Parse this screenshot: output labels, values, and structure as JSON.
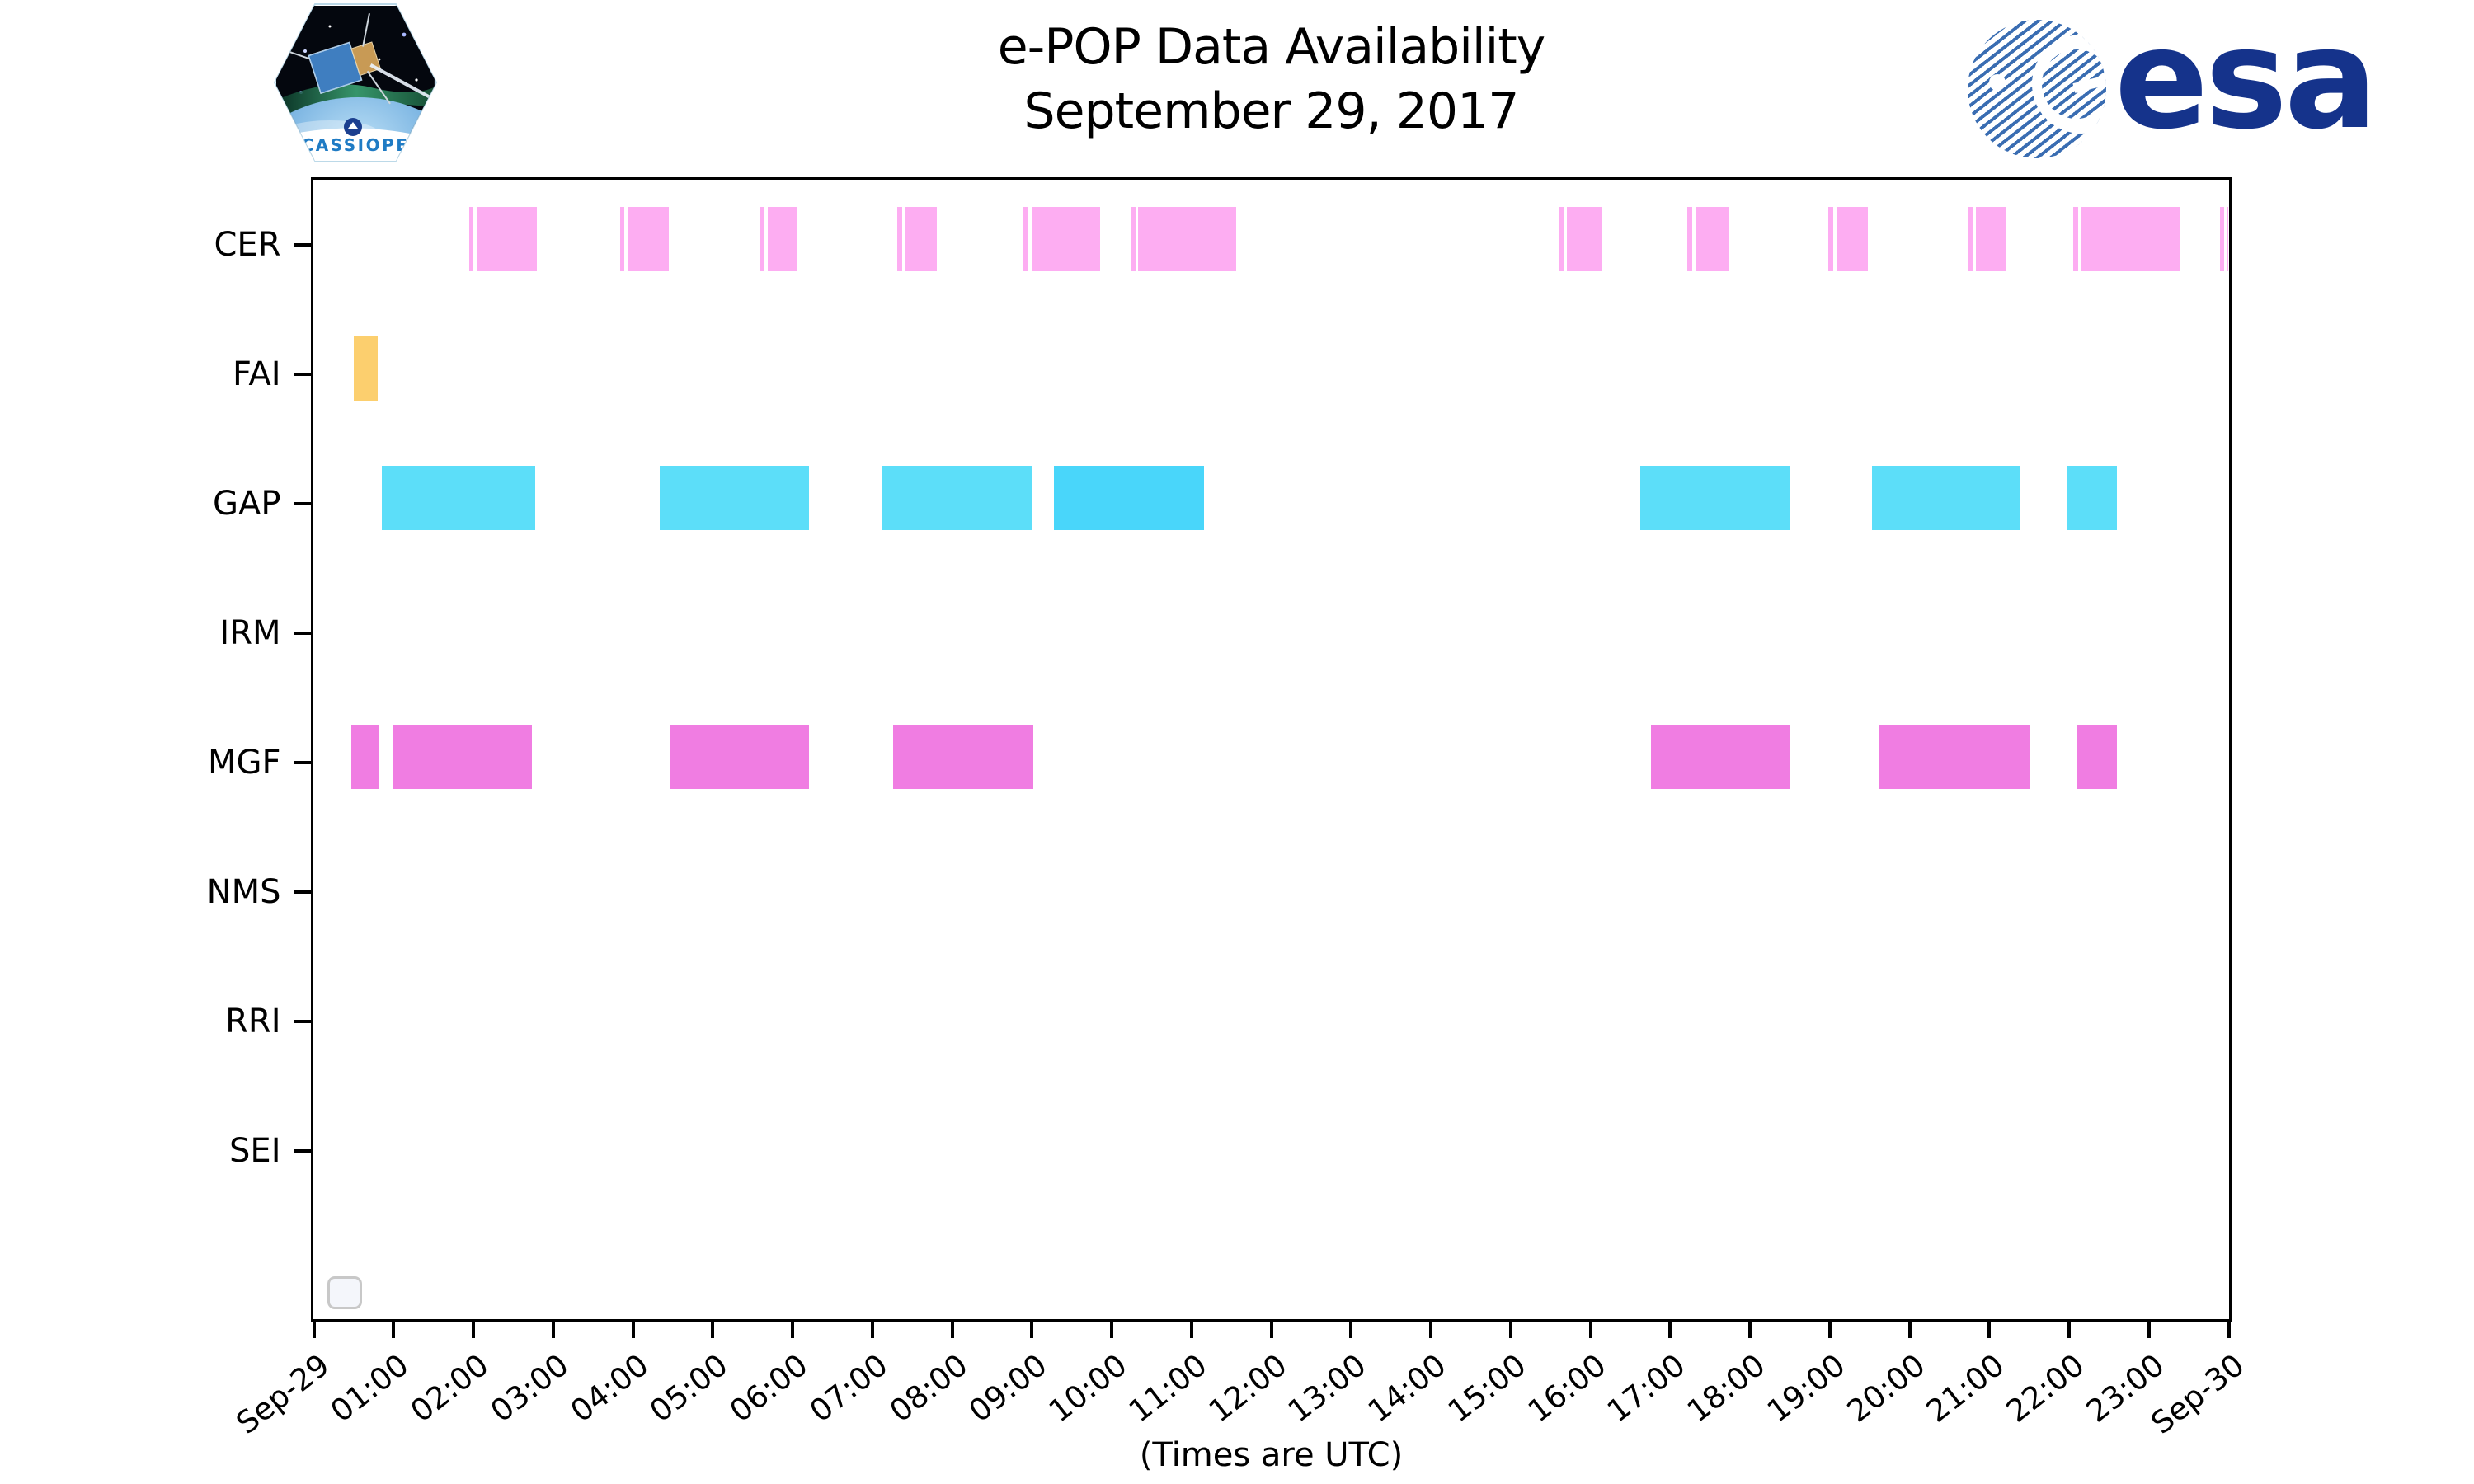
{
  "header": {
    "title_line1": "e-POP Data Availability",
    "title_line2": "September 29, 2017"
  },
  "logos": {
    "cassiope_patch_text": "CASSIOPE",
    "esa_text": "esa",
    "esa_navy": "#15338b",
    "esa_stripe_blue": "#3a6db2"
  },
  "chart_data": {
    "type": "bar",
    "subtype": "horizontal-availability-timeline",
    "title": "e-POP Data Availability September 29, 2017",
    "xlabel": "(Times are UTC)",
    "ylabel": "",
    "grid": false,
    "x_axis": {
      "range_hours": [
        0,
        24
      ],
      "tick_labels": [
        "Sep-29",
        "01:00",
        "02:00",
        "03:00",
        "04:00",
        "05:00",
        "06:00",
        "07:00",
        "08:00",
        "09:00",
        "10:00",
        "11:00",
        "12:00",
        "13:00",
        "14:00",
        "15:00",
        "16:00",
        "17:00",
        "18:00",
        "19:00",
        "20:00",
        "21:00",
        "22:00",
        "23:00",
        "Sep-30"
      ]
    },
    "legend": {
      "visible": true,
      "entries": [],
      "position": "lower-left"
    },
    "rows": [
      {
        "label": "CER",
        "color": "#fdadf2",
        "intervals": [
          {
            "s": 1.95,
            "e": 2.01
          },
          {
            "s": 2.05,
            "e": 2.8
          },
          {
            "s": 3.84,
            "e": 3.9
          },
          {
            "s": 3.94,
            "e": 4.45
          },
          {
            "s": 5.59,
            "e": 5.65
          },
          {
            "s": 5.69,
            "e": 6.07
          },
          {
            "s": 7.32,
            "e": 7.38
          },
          {
            "s": 7.42,
            "e": 7.81
          },
          {
            "s": 8.9,
            "e": 8.96
          },
          {
            "s": 9.0,
            "e": 9.86
          },
          {
            "s": 10.24,
            "e": 10.3
          },
          {
            "s": 10.34,
            "e": 11.57
          },
          {
            "s": 15.61,
            "e": 15.67
          },
          {
            "s": 15.71,
            "e": 16.15
          },
          {
            "s": 17.22,
            "e": 17.28
          },
          {
            "s": 17.32,
            "e": 17.75
          },
          {
            "s": 18.99,
            "e": 19.05
          },
          {
            "s": 19.09,
            "e": 19.48
          },
          {
            "s": 20.74,
            "e": 20.8
          },
          {
            "s": 20.84,
            "e": 21.22
          },
          {
            "s": 22.06,
            "e": 22.12
          },
          {
            "s": 22.16,
            "e": 23.4
          },
          {
            "s": 23.9,
            "e": 23.95
          },
          {
            "s": 23.98,
            "e": 24.0
          }
        ]
      },
      {
        "label": "FAI",
        "color": "#fccf6e",
        "intervals": [
          {
            "s": 0.51,
            "e": 0.81
          }
        ]
      },
      {
        "label": "GAP",
        "color": "#5cdef9",
        "intervals": [
          {
            "s": 0.86,
            "e": 2.78
          },
          {
            "s": 4.34,
            "e": 6.21
          },
          {
            "s": 7.13,
            "e": 9.0
          },
          {
            "s": 9.28,
            "e": 11.16,
            "c": "#49d6fa"
          },
          {
            "s": 16.63,
            "e": 18.51
          },
          {
            "s": 19.54,
            "e": 21.38
          },
          {
            "s": 21.98,
            "e": 22.6
          }
        ]
      },
      {
        "label": "IRM",
        "color": "#9ecae1",
        "intervals": []
      },
      {
        "label": "MGF",
        "color": "#f07de2",
        "intervals": [
          {
            "s": 0.48,
            "e": 0.82
          },
          {
            "s": 0.99,
            "e": 2.74
          },
          {
            "s": 4.46,
            "e": 6.21
          },
          {
            "s": 7.27,
            "e": 9.02
          },
          {
            "s": 16.76,
            "e": 18.51
          },
          {
            "s": 19.63,
            "e": 21.52
          },
          {
            "s": 22.1,
            "e": 22.6
          }
        ]
      },
      {
        "label": "NMS",
        "color": "#cccccc",
        "intervals": []
      },
      {
        "label": "RRI",
        "color": "#cccccc",
        "intervals": []
      },
      {
        "label": "SEI",
        "color": "#cccccc",
        "intervals": []
      }
    ]
  }
}
